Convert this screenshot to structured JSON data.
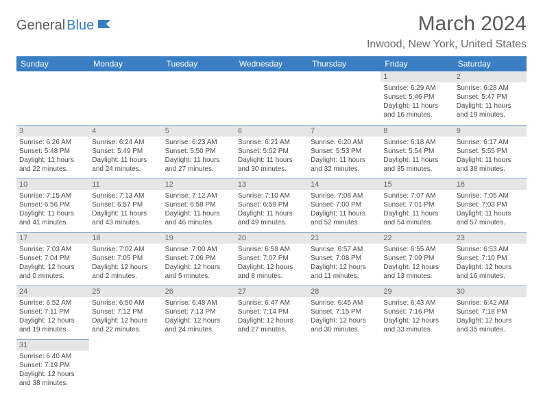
{
  "logo": {
    "part1": "General",
    "part2": "Blue"
  },
  "title": "March 2024",
  "location": "Inwood, New York, United States",
  "header_bg": "#3a7fc4",
  "header_text_color": "#ffffff",
  "daynum_bg": "#e6e6e6",
  "border_color": "#8aa8c8",
  "weekdays": [
    "Sunday",
    "Monday",
    "Tuesday",
    "Wednesday",
    "Thursday",
    "Friday",
    "Saturday"
  ],
  "weeks": [
    [
      null,
      null,
      null,
      null,
      null,
      {
        "n": "1",
        "sr": "6:29 AM",
        "ss": "5:46 PM",
        "dl": "11 hours and 16 minutes."
      },
      {
        "n": "2",
        "sr": "6:28 AM",
        "ss": "5:47 PM",
        "dl": "11 hours and 19 minutes."
      }
    ],
    [
      {
        "n": "3",
        "sr": "6:26 AM",
        "ss": "5:48 PM",
        "dl": "11 hours and 22 minutes."
      },
      {
        "n": "4",
        "sr": "6:24 AM",
        "ss": "5:49 PM",
        "dl": "11 hours and 24 minutes."
      },
      {
        "n": "5",
        "sr": "6:23 AM",
        "ss": "5:50 PM",
        "dl": "11 hours and 27 minutes."
      },
      {
        "n": "6",
        "sr": "6:21 AM",
        "ss": "5:52 PM",
        "dl": "11 hours and 30 minutes."
      },
      {
        "n": "7",
        "sr": "6:20 AM",
        "ss": "5:53 PM",
        "dl": "11 hours and 32 minutes."
      },
      {
        "n": "8",
        "sr": "6:18 AM",
        "ss": "5:54 PM",
        "dl": "11 hours and 35 minutes."
      },
      {
        "n": "9",
        "sr": "6:17 AM",
        "ss": "5:55 PM",
        "dl": "11 hours and 38 minutes."
      }
    ],
    [
      {
        "n": "10",
        "sr": "7:15 AM",
        "ss": "6:56 PM",
        "dl": "11 hours and 41 minutes."
      },
      {
        "n": "11",
        "sr": "7:13 AM",
        "ss": "6:57 PM",
        "dl": "11 hours and 43 minutes."
      },
      {
        "n": "12",
        "sr": "7:12 AM",
        "ss": "6:58 PM",
        "dl": "11 hours and 46 minutes."
      },
      {
        "n": "13",
        "sr": "7:10 AM",
        "ss": "6:59 PM",
        "dl": "11 hours and 49 minutes."
      },
      {
        "n": "14",
        "sr": "7:08 AM",
        "ss": "7:00 PM",
        "dl": "11 hours and 52 minutes."
      },
      {
        "n": "15",
        "sr": "7:07 AM",
        "ss": "7:01 PM",
        "dl": "11 hours and 54 minutes."
      },
      {
        "n": "16",
        "sr": "7:05 AM",
        "ss": "7:03 PM",
        "dl": "11 hours and 57 minutes."
      }
    ],
    [
      {
        "n": "17",
        "sr": "7:03 AM",
        "ss": "7:04 PM",
        "dl": "12 hours and 0 minutes."
      },
      {
        "n": "18",
        "sr": "7:02 AM",
        "ss": "7:05 PM",
        "dl": "12 hours and 2 minutes."
      },
      {
        "n": "19",
        "sr": "7:00 AM",
        "ss": "7:06 PM",
        "dl": "12 hours and 5 minutes."
      },
      {
        "n": "20",
        "sr": "6:58 AM",
        "ss": "7:07 PM",
        "dl": "12 hours and 8 minutes."
      },
      {
        "n": "21",
        "sr": "6:57 AM",
        "ss": "7:08 PM",
        "dl": "12 hours and 11 minutes."
      },
      {
        "n": "22",
        "sr": "6:55 AM",
        "ss": "7:09 PM",
        "dl": "12 hours and 13 minutes."
      },
      {
        "n": "23",
        "sr": "6:53 AM",
        "ss": "7:10 PM",
        "dl": "12 hours and 16 minutes."
      }
    ],
    [
      {
        "n": "24",
        "sr": "6:52 AM",
        "ss": "7:11 PM",
        "dl": "12 hours and 19 minutes."
      },
      {
        "n": "25",
        "sr": "6:50 AM",
        "ss": "7:12 PM",
        "dl": "12 hours and 22 minutes."
      },
      {
        "n": "26",
        "sr": "6:48 AM",
        "ss": "7:13 PM",
        "dl": "12 hours and 24 minutes."
      },
      {
        "n": "27",
        "sr": "6:47 AM",
        "ss": "7:14 PM",
        "dl": "12 hours and 27 minutes."
      },
      {
        "n": "28",
        "sr": "6:45 AM",
        "ss": "7:15 PM",
        "dl": "12 hours and 30 minutes."
      },
      {
        "n": "29",
        "sr": "6:43 AM",
        "ss": "7:16 PM",
        "dl": "12 hours and 33 minutes."
      },
      {
        "n": "30",
        "sr": "6:42 AM",
        "ss": "7:18 PM",
        "dl": "12 hours and 35 minutes."
      }
    ],
    [
      {
        "n": "31",
        "sr": "6:40 AM",
        "ss": "7:19 PM",
        "dl": "12 hours and 38 minutes."
      },
      null,
      null,
      null,
      null,
      null,
      null
    ]
  ],
  "labels": {
    "sunrise": "Sunrise:",
    "sunset": "Sunset:",
    "daylight": "Daylight:"
  }
}
